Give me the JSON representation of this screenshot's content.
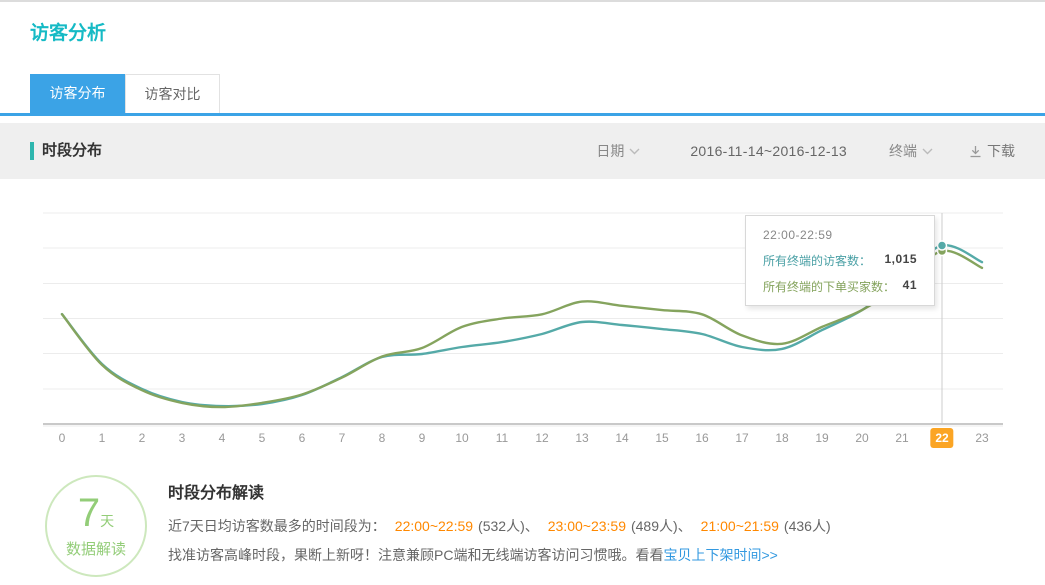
{
  "header": {
    "title": "访客分析"
  },
  "tabs": [
    {
      "label": "访客分布",
      "active": true
    },
    {
      "label": "访客对比",
      "active": false
    }
  ],
  "section": {
    "title": "时段分布",
    "controls": {
      "date_label": "日期",
      "date_range": "2016-11-14~2016-12-13",
      "terminal_label": "终端",
      "download_label": "下载"
    }
  },
  "chart_data": {
    "type": "line",
    "title": "时段分布",
    "xlabel": "",
    "ylabel": "",
    "x": [
      0,
      1,
      2,
      3,
      4,
      5,
      6,
      7,
      8,
      9,
      10,
      11,
      12,
      13,
      14,
      15,
      16,
      17,
      18,
      19,
      20,
      21,
      22,
      23
    ],
    "selected_x": 22,
    "grid": true,
    "legend_position": "none",
    "series": [
      {
        "name": "所有终端的访客数",
        "color": "#55aaa8",
        "axis_max": 1200,
        "values": [
          625,
          341,
          199,
          125,
          102,
          114,
          165,
          267,
          381,
          398,
          438,
          466,
          512,
          580,
          563,
          540,
          512,
          438,
          427,
          534,
          648,
          819,
          1015,
          921
        ]
      },
      {
        "name": "所有终端的下单买家数",
        "color": "#85a45e",
        "axis_max": 50,
        "values": [
          26,
          14,
          8,
          5,
          4,
          5,
          7,
          11,
          16,
          18,
          23,
          25,
          26,
          29,
          28,
          27,
          26,
          21,
          19,
          23,
          27,
          33,
          41,
          37
        ]
      }
    ]
  },
  "tooltip": {
    "time_range": "22:00-22:59",
    "rows": [
      {
        "label": "所有终端的访客数：",
        "value": "1,015",
        "color": "#4aa0a5"
      },
      {
        "label": "所有终端的下单买家数：",
        "value": "41",
        "color": "#84a35c"
      }
    ]
  },
  "insight": {
    "badge_number": "7",
    "badge_unit": "天",
    "badge_caption": "数据解读",
    "heading": "时段分布解读",
    "line1_prefix": "近7天日均访客数最多的时间段为：",
    "peaks": [
      {
        "time": "22:00~22:59",
        "count": "(532人)、"
      },
      {
        "time": "23:00~23:59",
        "count": "(489人)、"
      },
      {
        "time": "21:00~21:59",
        "count": "(436人)"
      }
    ],
    "line2_text": "找准访客高峰时段，果断上新呀！注意兼顾PC端和无线端访客访问习惯哦。看看",
    "line2_link": "宝贝上下架时间>>"
  },
  "colors": {
    "brand_teal": "#15bac5",
    "tab_blue": "#3ba3e6",
    "accent_teal": "#2eb6ae",
    "visitors_line": "#55aaa8",
    "buyers_line": "#85a45e",
    "highlight_orange": "#fba524",
    "peak_time_orange": "#ff8800",
    "link_blue": "#3399e0",
    "badge_green": "#93cd78"
  }
}
